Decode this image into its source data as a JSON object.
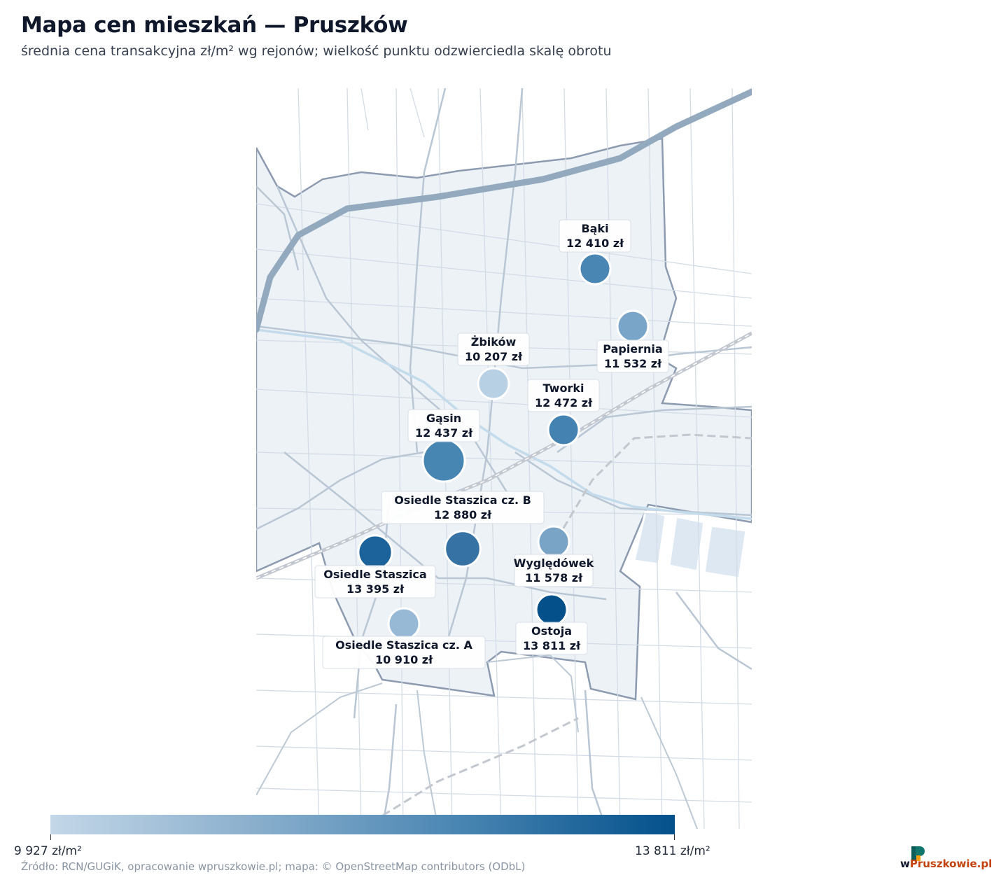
{
  "title": "Mapa cen mieszkań — Pruszków",
  "subtitle": "średnia cena transakcyjna zł/m² wg rejonów; wielkość punktu odzwierciedla skalę obrotu",
  "legend": {
    "min_label": "9 927 zł/m²",
    "max_label": "13 811 zł/m²",
    "min_value": 9927,
    "max_value": 13811,
    "colors": [
      "#c3d7e8",
      "#03508b"
    ]
  },
  "source": "Źródło: RCN/GUGiK, opracowanie wpruszkowie.pl; mapa: © OpenStreetMap contributors (ODbL)",
  "brand": {
    "w": "w",
    "rest": "Pruszkowie.pl"
  },
  "districts": [
    {
      "name": "Bąki",
      "price": "12 410 zł",
      "value": 12410,
      "turnover": 1,
      "color": "#4a86b3"
    },
    {
      "name": "Papiernia",
      "price": "11 532 zł",
      "value": 11532,
      "turnover": 1,
      "color": "#79a5c8"
    },
    {
      "name": "Żbików",
      "price": "10 207 zł",
      "value": 10207,
      "turnover": 1,
      "color": "#b8d0e4"
    },
    {
      "name": "Tworki",
      "price": "12 472 zł",
      "value": 12472,
      "turnover": 1,
      "color": "#4483b1"
    },
    {
      "name": "Gąsin",
      "price": "12 437 zł",
      "value": 12437,
      "turnover": 4,
      "color": "#4785b2"
    },
    {
      "name": "Osiedle Staszica cz. B",
      "price": "12 880 zł",
      "value": 12880,
      "turnover": 2,
      "color": "#3673a4"
    },
    {
      "name": "Osiedle Staszica",
      "price": "13 395 zł",
      "value": 13395,
      "turnover": 1.6,
      "color": "#1c639b"
    },
    {
      "name": "Wyględówek",
      "price": "11 578 zł",
      "value": 11578,
      "turnover": 1,
      "color": "#7aa4c6"
    },
    {
      "name": "Ostoja",
      "price": "13 811 zł",
      "value": 13811,
      "turnover": 1,
      "color": "#03508b"
    },
    {
      "name": "Osiedle Staszica cz. A",
      "price": "10 910 zł",
      "value": 10910,
      "turnover": 1,
      "color": "#98b9d6"
    }
  ]
}
